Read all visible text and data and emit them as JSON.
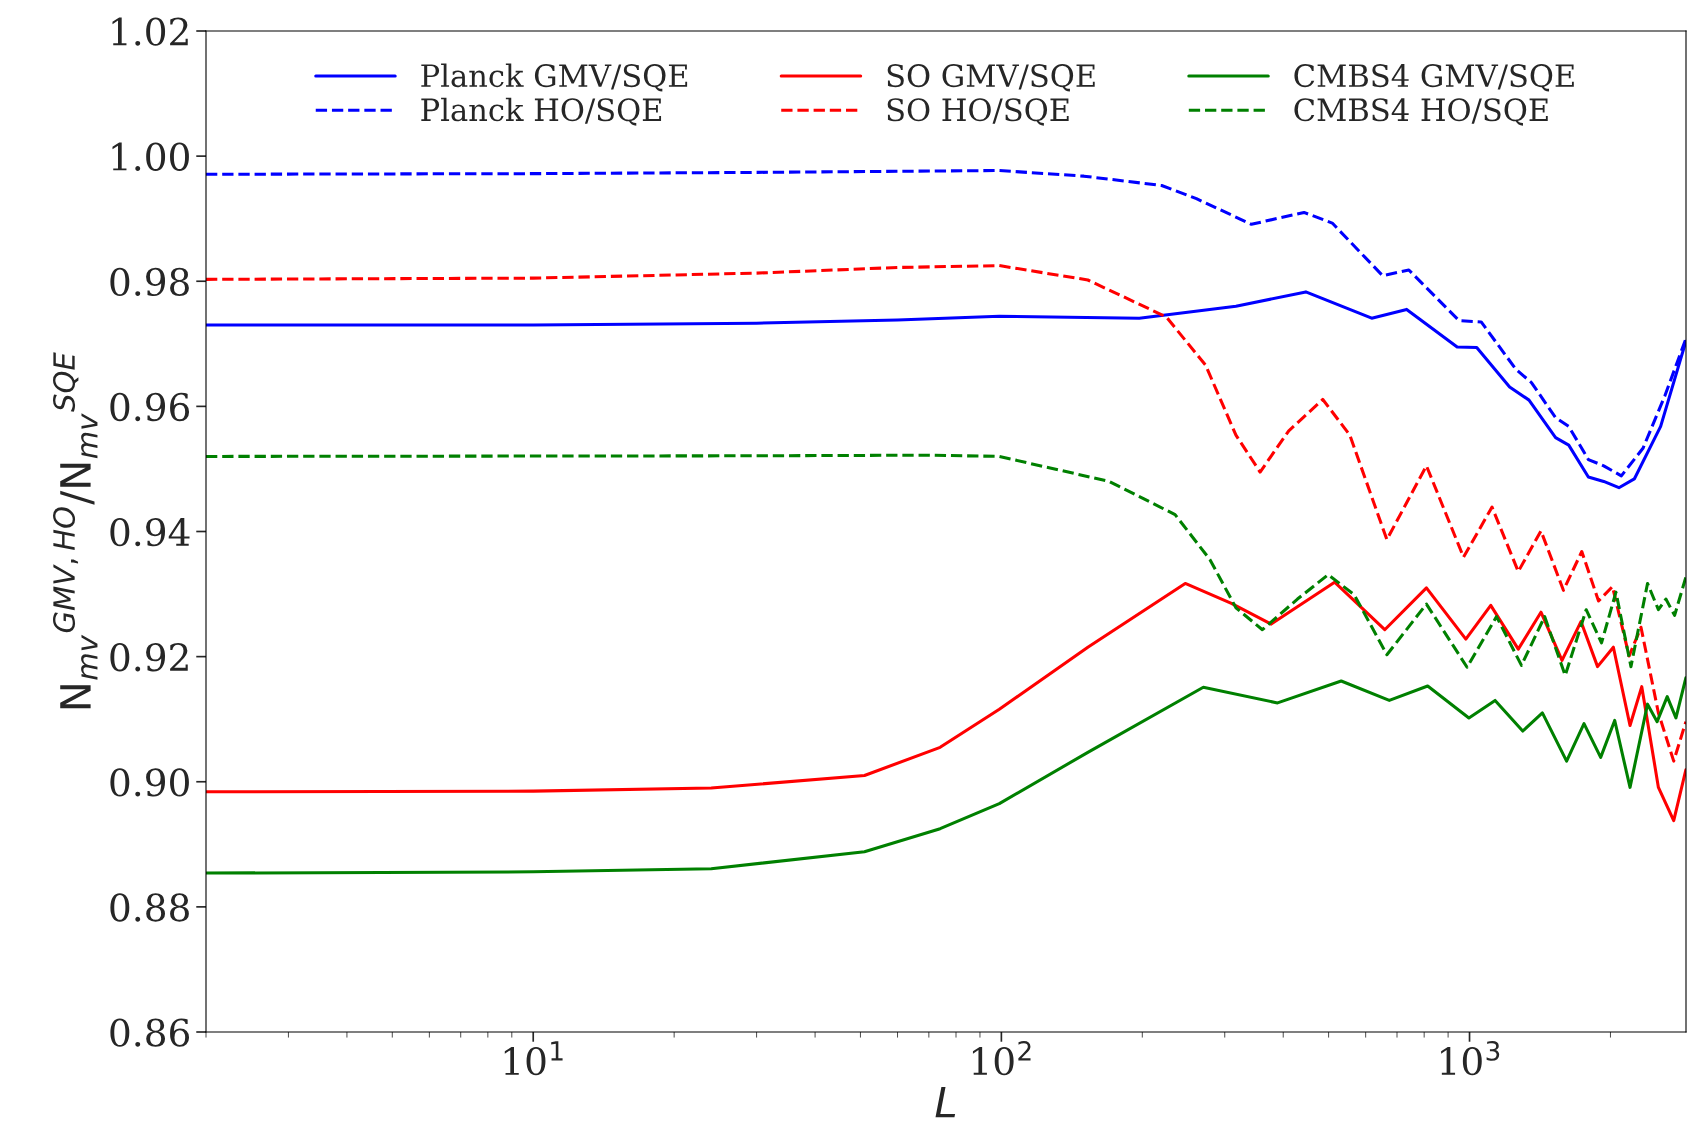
{
  "chart_data": {
    "type": "line",
    "xlabel": "L",
    "ylabel": "N$_{mv}$$^{GMV,HO}$/N$_{mv}$$^{SQE}$",
    "log": "x",
    "grid": false,
    "legend": "top",
    "xlim": [
      2,
      2900
    ],
    "xticks": [
      {
        "value": 10,
        "label": "10$^{1}$"
      },
      {
        "value": 100,
        "label": "10$^{2}$"
      },
      {
        "value": 1000,
        "label": "10$^{3}$"
      }
    ],
    "ylim": [
      0.86,
      1.02
    ],
    "yticks": [
      0.86,
      0.88,
      {
        "value": 0.9,
        "label": "0.90"
      },
      0.92,
      0.94,
      0.96,
      0.98,
      {
        "value": 1.0,
        "label": "1.00"
      },
      1.02
    ],
    "series": [
      {
        "name": "Planck GMV/SQE",
        "color": "#0000ff",
        "line_style": "solid",
        "x": [
          2,
          10,
          30,
          60,
          99,
          197,
          317,
          447,
          618,
          734,
          941,
          1036,
          1218,
          1340,
          1527,
          1629,
          1794,
          1935,
          2085,
          2249,
          2560,
          2898
        ],
        "values": [
          0.973,
          0.973,
          0.9733,
          0.9738,
          0.9744,
          0.9741,
          0.976,
          0.9783,
          0.9741,
          0.9755,
          0.9695,
          0.9694,
          0.9631,
          0.961,
          0.955,
          0.9538,
          0.9487,
          0.948,
          0.947,
          0.9484,
          0.9568,
          0.9704
        ]
      },
      {
        "name": "Planck HO/SQE",
        "color": "#0000ff",
        "line_style": "dashed",
        "x": [
          2,
          10,
          30,
          99,
          150,
          220,
          261,
          342,
          443,
          509,
          652,
          742,
          950,
          1059,
          1257,
          1356,
          1527,
          1629,
          1794,
          1935,
          2110,
          2347,
          2614,
          2898
        ],
        "values": [
          0.9971,
          0.9972,
          0.9974,
          0.9977,
          0.9968,
          0.9953,
          0.9932,
          0.9891,
          0.991,
          0.9893,
          0.9809,
          0.9818,
          0.9737,
          0.9735,
          0.9659,
          0.9638,
          0.9582,
          0.9568,
          0.9515,
          0.9505,
          0.9489,
          0.9533,
          0.9617,
          0.9708
        ]
      },
      {
        "name": "SO GMV/SQE",
        "color": "#ff0000",
        "line_style": "solid",
        "x": [
          2,
          10,
          24,
          51,
          74,
          99,
          153,
          247,
          310,
          377,
          515,
          659,
          809,
          982,
          1110,
          1271,
          1421,
          1576,
          1730,
          1877,
          2029,
          2202,
          2333,
          2532,
          2730,
          2898
        ],
        "values": [
          0.8984,
          0.8985,
          0.899,
          0.901,
          0.9055,
          0.9116,
          0.9215,
          0.9317,
          0.9285,
          0.9252,
          0.9319,
          0.9243,
          0.931,
          0.9228,
          0.9282,
          0.9212,
          0.9271,
          0.9194,
          0.9256,
          0.9184,
          0.9215,
          0.909,
          0.9152,
          0.8991,
          0.8938,
          0.9019
        ]
      },
      {
        "name": "SO HO/SQE",
        "color": "#ff0000",
        "line_style": "dashed",
        "x": [
          2,
          10,
          30,
          60,
          99,
          153,
          225,
          273,
          317,
          357,
          411,
          486,
          555,
          666,
          809,
          971,
          1117,
          1271,
          1421,
          1587,
          1737,
          1886,
          2020,
          2192,
          2324,
          2532,
          2730,
          2898
        ],
        "values": [
          0.9803,
          0.9805,
          0.9813,
          0.9822,
          0.9825,
          0.9802,
          0.9743,
          0.9666,
          0.9554,
          0.9495,
          0.9561,
          0.9611,
          0.9554,
          0.9387,
          0.9505,
          0.9359,
          0.9439,
          0.9336,
          0.9401,
          0.9306,
          0.9368,
          0.9289,
          0.9312,
          0.9201,
          0.9247,
          0.911,
          0.9033,
          0.9096
        ]
      },
      {
        "name": "CMBS4 GMV/SQE",
        "color": "#008000",
        "line_style": "solid",
        "x": [
          2,
          10,
          24,
          51,
          74,
          99,
          153,
          270,
          389,
          532,
          674,
          814,
          997,
          1134,
          1299,
          1431,
          1612,
          1756,
          1906,
          2042,
          2202,
          2400,
          2516,
          2644,
          2760,
          2898
        ],
        "values": [
          0.8854,
          0.8856,
          0.8861,
          0.8888,
          0.8925,
          0.8965,
          0.9047,
          0.9151,
          0.9126,
          0.9161,
          0.913,
          0.9153,
          0.9102,
          0.913,
          0.9081,
          0.911,
          0.9033,
          0.9093,
          0.9039,
          0.9098,
          0.8991,
          0.9124,
          0.9096,
          0.9136,
          0.9102,
          0.9166
        ]
      },
      {
        "name": "CMBS4 HO/SQE",
        "color": "#008000",
        "line_style": "dashed",
        "x": [
          2,
          30,
          70,
          99,
          170,
          235,
          279,
          317,
          361,
          429,
          499,
          567,
          666,
          809,
          988,
          1142,
          1291,
          1447,
          1601,
          1775,
          1914,
          2055,
          2212,
          2400,
          2532,
          2627,
          2742,
          2898
        ],
        "values": [
          0.952,
          0.9521,
          0.9522,
          0.952,
          0.948,
          0.9427,
          0.9355,
          0.9278,
          0.9243,
          0.9292,
          0.9331,
          0.9299,
          0.9203,
          0.9284,
          0.9183,
          0.9264,
          0.9186,
          0.9264,
          0.917,
          0.9275,
          0.9222,
          0.9303,
          0.9184,
          0.9317,
          0.9275,
          0.9292,
          0.9266,
          0.9327
        ]
      }
    ]
  }
}
